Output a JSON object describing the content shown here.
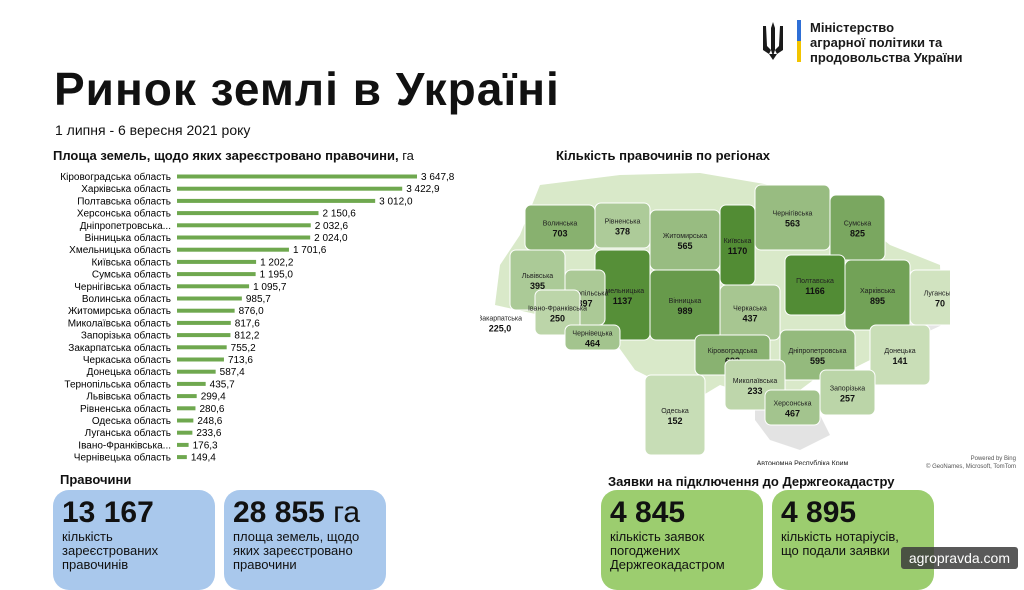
{
  "header": {
    "ministry_lines": [
      "Міністерство",
      "аграрної політики та",
      "продовольства України"
    ],
    "title": "Ринок землі в Україні",
    "subtitle": "1 липня - 6 вересня 2021 року"
  },
  "chart_data": [
    {
      "type": "bar",
      "orientation": "horizontal",
      "title": "Площа земель, щодо яких зареєстровано правочини,",
      "unit": "га",
      "color": "#6fa84f",
      "categories": [
        "Кіровоградська область",
        "Харківська область",
        "Полтавська область",
        "Херсонська область",
        "Дніпропетровська...",
        "Вінницька область",
        "Хмельницька область",
        "Київська область",
        "Сумська область",
        "Чернігівська область",
        "Волинська область",
        "Житомирська область",
        "Миколаївська область",
        "Запорізька область",
        "Закарпатська область",
        "Черкаська область",
        "Донецька область",
        "Тернопільська область",
        "Львівська область",
        "Рівненська область",
        "Одеська область",
        "Луганська область",
        "Івано-Франківська...",
        "Чернівецька область"
      ],
      "values": [
        3647.8,
        3422.9,
        3012.0,
        2150.6,
        2032.6,
        2024.0,
        1701.6,
        1202.2,
        1195.0,
        1095.7,
        985.7,
        876.0,
        817.6,
        812.2,
        755.2,
        713.6,
        587.4,
        435.7,
        299.4,
        280.6,
        248.6,
        233.6,
        176.3,
        149.4
      ],
      "value_labels": [
        "3 647,8",
        "3 422,9",
        "3 012,0",
        "2 150,6",
        "2 032,6",
        "2 024,0",
        "1 701,6",
        "1 202,2",
        "1 195,0",
        "1 095,7",
        "985,7",
        "876,0",
        "817,6",
        "812,2",
        "755,2",
        "713,6",
        "587,4",
        "435,7",
        "299,4",
        "280,6",
        "248,6",
        "233,6",
        "176,3",
        "149,4"
      ]
    },
    {
      "type": "map",
      "title": "Кількість правочинів по регіонах",
      "regions": [
        {
          "name": "Волинська",
          "value": 703
        },
        {
          "name": "Рівненська",
          "value": 378
        },
        {
          "name": "Житомирська",
          "value": 565
        },
        {
          "name": "Київська",
          "value": 1170
        },
        {
          "name": "Чернігівська",
          "value": 563
        },
        {
          "name": "Сумська",
          "value": 825
        },
        {
          "name": "Харківська",
          "value": 895
        },
        {
          "name": "Луганська",
          "value": 70
        },
        {
          "name": "Донецька",
          "value": 141
        },
        {
          "name": "Полтавська",
          "value": 1166
        },
        {
          "name": "Черкаська",
          "value": 437
        },
        {
          "name": "Вінницька",
          "value": 989
        },
        {
          "name": "Хмельницька",
          "value": 1137
        },
        {
          "name": "Тернопільська",
          "value": 397
        },
        {
          "name": "Львівська",
          "value": 395
        },
        {
          "name": "Івано-Франківська",
          "value": 250
        },
        {
          "name": "Закарпатська",
          "value": "225,0"
        },
        {
          "name": "Чернівецька",
          "value": 464
        },
        {
          "name": "Кіровоградська",
          "value": 693
        },
        {
          "name": "Дніпропетровська",
          "value": 595
        },
        {
          "name": "Миколаївська",
          "value": 233
        },
        {
          "name": "Одеська",
          "value": 152
        },
        {
          "name": "Херсонська",
          "value": 467
        },
        {
          "name": "Запорізька",
          "value": 257
        },
        {
          "name": "Автономна Республіка Крим",
          "value": null
        }
      ]
    }
  ],
  "map_credits": {
    "powered": "Powered by Bing",
    "sources": "© GeoNames, Microsoft, TomTom"
  },
  "deals": {
    "label": "Правочини",
    "card1": {
      "value": "13 167",
      "lines": [
        "кількість",
        "зареєстрованих",
        "правочинів"
      ]
    },
    "card2": {
      "value": "28 855",
      "unit": "га",
      "lines": [
        "площа земель, щодо",
        "яких зареєстровано",
        "правочини"
      ]
    }
  },
  "applications": {
    "label": "Заявки на підключення до Держгеокадастру",
    "card1": {
      "value": "4 845",
      "lines": [
        "кількість заявок",
        "погоджених",
        "Держгеокадастром"
      ]
    },
    "card2": {
      "value": "4 895",
      "lines": [
        "кількість нотаріусів,",
        "що подали заявки"
      ]
    }
  },
  "watermark": "agropravda.com"
}
